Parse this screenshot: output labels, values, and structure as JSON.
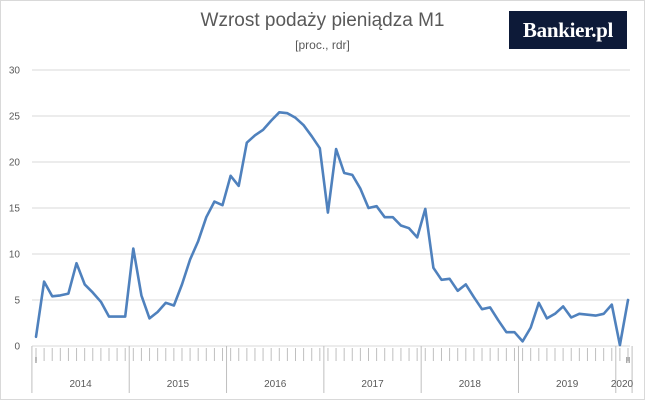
{
  "branding": {
    "logo_text": "Bankier.pl"
  },
  "colors": {
    "line": "#4f81bd",
    "grid": "#d9d9d9",
    "axis": "#bfbfbf",
    "text": "#595959",
    "logo_bg": "#0d1a38"
  },
  "chart_data": {
    "type": "line",
    "title": "Wzrost podaży pieniądza M1",
    "subtitle": "[proc., rdr]",
    "xlabel": "",
    "ylabel": "",
    "ylim": [
      0,
      30
    ],
    "y_ticks": [
      0,
      5,
      10,
      15,
      20,
      25,
      30
    ],
    "grid": true,
    "legend": "none",
    "year_labels": [
      "2014",
      "2015",
      "2016",
      "2017",
      "2018",
      "2019",
      "2020"
    ],
    "month_markers": [
      {
        "month": "2014-01",
        "label": "I"
      },
      {
        "month": "2020-02",
        "label": "II"
      }
    ],
    "x": [
      "2014-01",
      "2014-02",
      "2014-03",
      "2014-04",
      "2014-05",
      "2014-06",
      "2014-07",
      "2014-08",
      "2014-09",
      "2014-10",
      "2014-11",
      "2014-12",
      "2015-01",
      "2015-02",
      "2015-03",
      "2015-04",
      "2015-05",
      "2015-06",
      "2015-07",
      "2015-08",
      "2015-09",
      "2015-10",
      "2015-11",
      "2015-12",
      "2016-01",
      "2016-02",
      "2016-03",
      "2016-04",
      "2016-05",
      "2016-06",
      "2016-07",
      "2016-08",
      "2016-09",
      "2016-10",
      "2016-11",
      "2016-12",
      "2017-01",
      "2017-02",
      "2017-03",
      "2017-04",
      "2017-05",
      "2017-06",
      "2017-07",
      "2017-08",
      "2017-09",
      "2017-10",
      "2017-11",
      "2017-12",
      "2018-01",
      "2018-02",
      "2018-03",
      "2018-04",
      "2018-05",
      "2018-06",
      "2018-07",
      "2018-08",
      "2018-09",
      "2018-10",
      "2018-11",
      "2018-12",
      "2019-01",
      "2019-02",
      "2019-03",
      "2019-04",
      "2019-05",
      "2019-06",
      "2019-07",
      "2019-08",
      "2019-09",
      "2019-10",
      "2019-11",
      "2019-12",
      "2020-01",
      "2020-02"
    ],
    "series": [
      {
        "values": [
          1.0,
          7.0,
          5.4,
          5.5,
          5.7,
          9.0,
          6.7,
          5.8,
          4.8,
          3.2,
          3.2,
          3.2,
          10.6,
          5.5,
          3.0,
          3.7,
          4.7,
          4.4,
          6.7,
          9.4,
          11.4,
          14.0,
          15.7,
          15.3,
          18.5,
          17.4,
          22.1,
          22.9,
          23.5,
          24.5,
          25.4,
          25.3,
          24.8,
          24.0,
          22.8,
          21.5,
          14.5,
          21.4,
          18.8,
          18.6,
          17.1,
          15.0,
          15.2,
          14.0,
          14.0,
          13.1,
          12.8,
          11.8,
          14.9,
          8.5,
          7.2,
          7.3,
          6.0,
          6.7,
          5.3,
          4.0,
          4.2,
          2.8,
          1.5,
          1.5,
          0.5,
          2.0,
          4.7,
          3.0,
          3.5,
          4.3,
          3.1,
          3.5,
          3.4,
          3.3,
          3.5,
          4.5,
          0.1,
          5.0
        ]
      }
    ]
  }
}
